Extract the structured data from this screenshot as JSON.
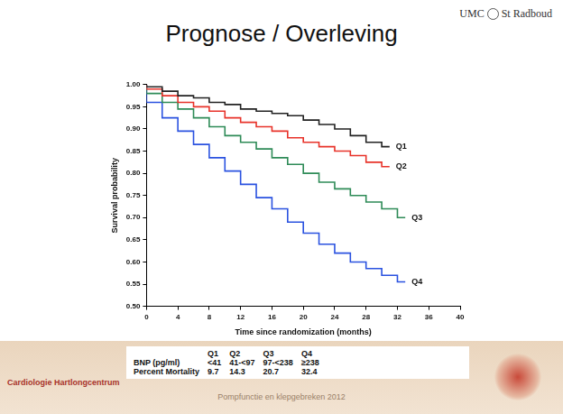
{
  "slide": {
    "title": "Prognose / Overleving",
    "logo": [
      "UMC",
      "St Radboud"
    ],
    "brand": "Cardiologie Hartlongcentrum",
    "footer": "Pompfunctie en klepgebreken 2012",
    "table": {
      "header": [
        "Q1",
        "Q2",
        "Q3",
        "Q4"
      ],
      "rows": [
        {
          "label": "BNP (pg/ml)",
          "cells": [
            "<41",
            "41-<97",
            "97-<238",
            "≥238"
          ]
        },
        {
          "label": "Percent Mortality",
          "cells": [
            9.7,
            14.3,
            20.7,
            32.4
          ]
        }
      ]
    }
  },
  "chart_data": {
    "type": "line",
    "line_style": "steps",
    "grid": false,
    "x_label": "Time since randomization (months)",
    "y_label": "Survival probability",
    "xlim": [
      0,
      40
    ],
    "xticks": [
      0,
      4,
      8,
      12,
      16,
      20,
      24,
      28,
      32,
      36,
      40
    ],
    "ylim": [
      0.5,
      1.0
    ],
    "yticks": [
      {
        "value": 0.5,
        "label": "0.50"
      },
      {
        "value": 0.55,
        "label": "0.55"
      },
      {
        "value": 0.6,
        "label": "0.60"
      },
      {
        "value": 0.65,
        "label": "0.65"
      },
      {
        "value": 0.7,
        "label": "0.70"
      },
      {
        "value": 0.75,
        "label": "0.75"
      },
      {
        "value": 0.8,
        "label": "0.80"
      },
      {
        "value": 0.85,
        "label": "0.85"
      },
      {
        "value": 0.9,
        "label": "0.90"
      },
      {
        "value": 0.95,
        "label": "0.95"
      },
      {
        "value": 1.0,
        "label": "1.00"
      }
    ],
    "series": [
      {
        "name": "Q1",
        "color": "#222222",
        "x": [
          0,
          2,
          4,
          6,
          8,
          10,
          12,
          14,
          16,
          18,
          20,
          22,
          24,
          26,
          28,
          30,
          31
        ],
        "values": [
          1.0,
          0.995,
          0.985,
          0.975,
          0.97,
          0.96,
          0.955,
          0.945,
          0.94,
          0.935,
          0.93,
          0.92,
          0.91,
          0.9,
          0.885,
          0.87,
          0.86
        ]
      },
      {
        "name": "Q2",
        "color": "#e8332a",
        "x": [
          0,
          2,
          4,
          6,
          8,
          10,
          12,
          14,
          16,
          18,
          20,
          22,
          24,
          26,
          28,
          30,
          31
        ],
        "values": [
          1.0,
          0.99,
          0.975,
          0.96,
          0.95,
          0.94,
          0.925,
          0.915,
          0.905,
          0.895,
          0.88,
          0.87,
          0.86,
          0.85,
          0.84,
          0.825,
          0.815
        ]
      },
      {
        "name": "Q3",
        "color": "#2e8b57",
        "x": [
          0,
          2,
          4,
          6,
          8,
          10,
          12,
          14,
          16,
          18,
          20,
          22,
          24,
          26,
          28,
          30,
          32,
          33
        ],
        "values": [
          1.0,
          0.98,
          0.96,
          0.945,
          0.925,
          0.905,
          0.885,
          0.87,
          0.855,
          0.835,
          0.82,
          0.8,
          0.78,
          0.765,
          0.75,
          0.735,
          0.72,
          0.7
        ]
      },
      {
        "name": "Q4",
        "color": "#2a52e0",
        "x": [
          0,
          2,
          4,
          6,
          8,
          10,
          12,
          14,
          16,
          18,
          20,
          22,
          24,
          26,
          28,
          30,
          32,
          33
        ],
        "values": [
          1.0,
          0.96,
          0.925,
          0.895,
          0.865,
          0.835,
          0.805,
          0.775,
          0.745,
          0.72,
          0.69,
          0.665,
          0.64,
          0.62,
          0.6,
          0.585,
          0.57,
          0.555
        ]
      }
    ]
  }
}
